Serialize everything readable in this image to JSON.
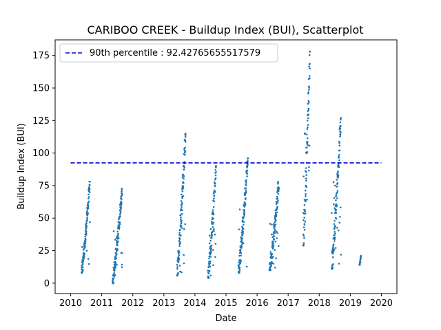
{
  "chart_data": {
    "type": "scatter",
    "title": "CARIBOO CREEK - Buildup Index (BUI), Scatterplot",
    "xlabel": "Date",
    "ylabel": "Buildup Index (BUI)",
    "xlim": [
      2009.5,
      2020.5
    ],
    "ylim": [
      -8,
      187
    ],
    "x_ticks": [
      "2010",
      "2011",
      "2012",
      "2013",
      "2014",
      "2015",
      "2016",
      "2017",
      "2018",
      "2019",
      "2020"
    ],
    "y_ticks": [
      "0",
      "25",
      "50",
      "75",
      "100",
      "125",
      "150",
      "175"
    ],
    "grid": false,
    "legend": {
      "placement": "top-left",
      "entries": [
        "90th percentile : 92.42765655517579"
      ]
    },
    "reference_line": {
      "name": "90th percentile : 92.42765655517579",
      "y": 92.42765655517579,
      "x_range": [
        2010.0,
        2020.0
      ],
      "style": "dashed",
      "color": "#0000cc"
    },
    "series_color": "#1f77b4",
    "seasons": [
      {
        "x_start": 2010.35,
        "x_end": 2010.62,
        "y_start": 8,
        "y_end": 78
      },
      {
        "x_start": 2011.35,
        "x_end": 2011.66,
        "y_start": 0,
        "y_end": 74
      },
      {
        "x_start": 2013.42,
        "x_end": 2013.7,
        "y_start": 6,
        "y_end": 115
      },
      {
        "x_start": 2014.42,
        "x_end": 2014.68,
        "y_start": 4,
        "y_end": 90
      },
      {
        "x_start": 2015.4,
        "x_end": 2015.7,
        "y_start": 8,
        "y_end": 96
      },
      {
        "x_start": 2016.4,
        "x_end": 2016.7,
        "y_start": 10,
        "y_end": 78
      },
      {
        "x_start": 2017.48,
        "x_end": 2017.7,
        "y_start": 29,
        "y_end": 178
      },
      {
        "x_start": 2018.4,
        "x_end": 2018.7,
        "y_start": 11,
        "y_end": 127
      },
      {
        "x_start": 2019.3,
        "x_end": 2019.34,
        "y_start": 14,
        "y_end": 21
      }
    ]
  }
}
